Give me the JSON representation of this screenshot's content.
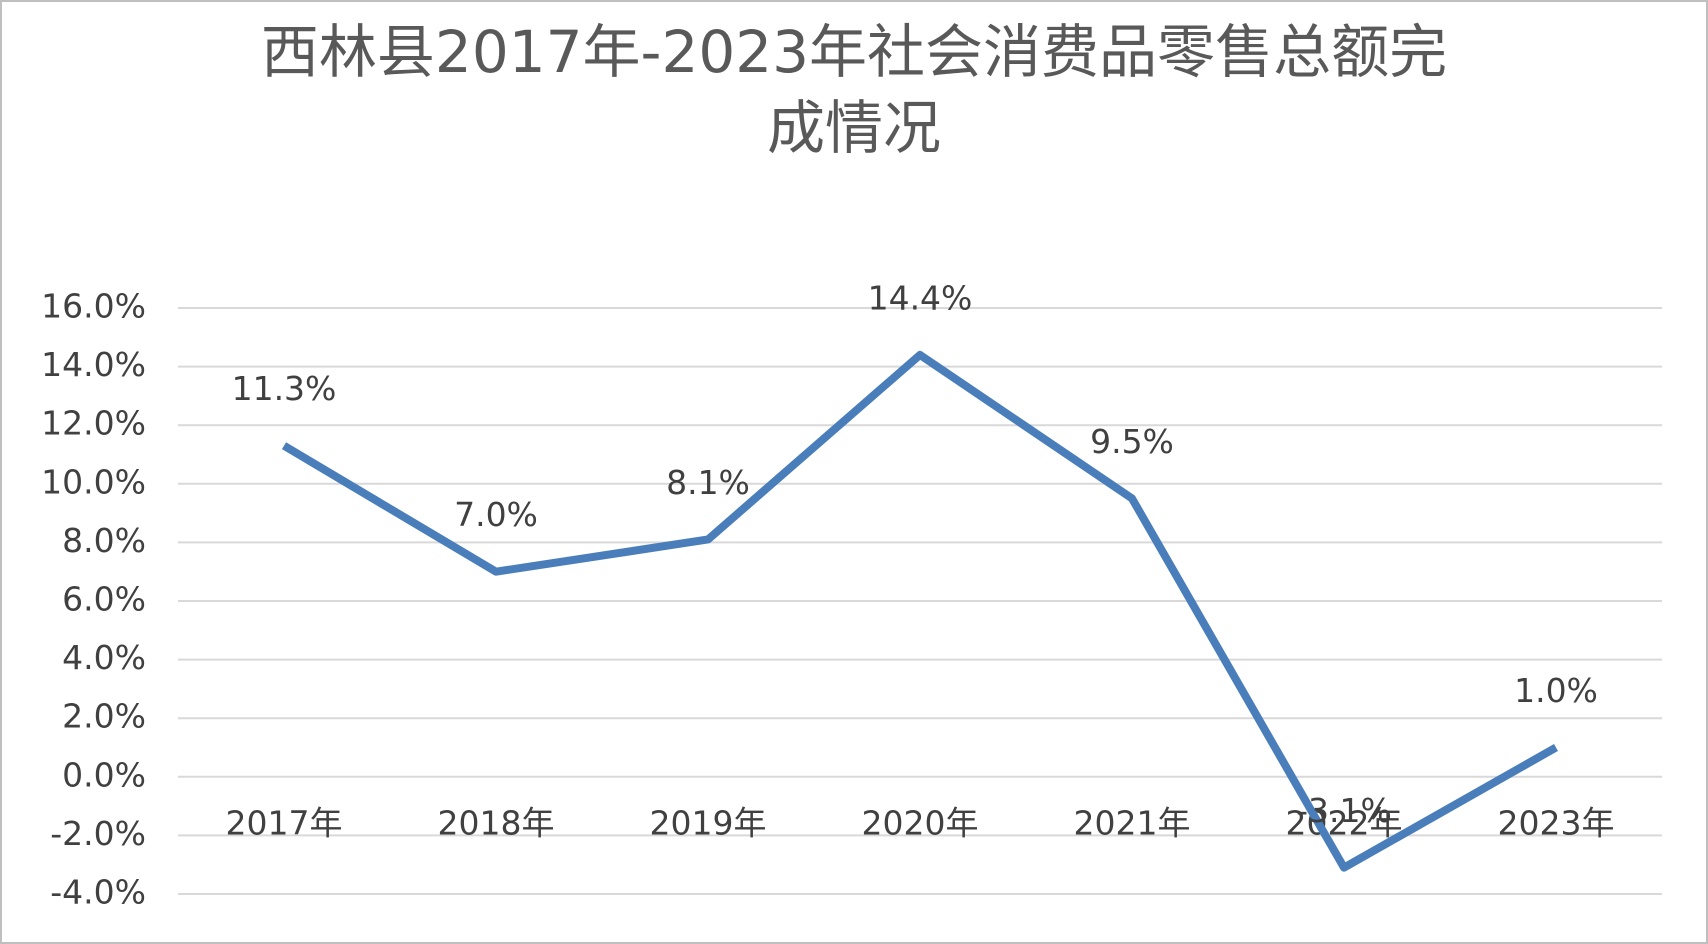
{
  "chart_data": {
    "type": "line",
    "title": "西林县2017年-2023年社会消费品零售总额完成情况",
    "categories": [
      "2017年",
      "2018年",
      "2019年",
      "2020年",
      "2021年",
      "2022年",
      "2023年"
    ],
    "series": [
      {
        "color": "#4a7ebb",
        "values": [
          11.3,
          7.0,
          8.1,
          14.4,
          9.5,
          -3.1,
          1.0
        ],
        "value_labels": [
          "11.3%",
          "7.0%",
          "8.1%",
          "14.4%",
          "9.5%",
          "-3.1%",
          "1.0%"
        ]
      }
    ],
    "ylim": [
      -4,
      16
    ],
    "yticks": [
      {
        "value": -4,
        "label": "-4.0%"
      },
      {
        "value": -2,
        "label": "-2.0%"
      },
      {
        "value": 0,
        "label": "0.0%"
      },
      {
        "value": 2,
        "label": "2.0%"
      },
      {
        "value": 4,
        "label": "4.0%"
      },
      {
        "value": 6,
        "label": "6.0%"
      },
      {
        "value": 8,
        "label": "8.0%"
      },
      {
        "value": 10,
        "label": "10.0%"
      },
      {
        "value": 12,
        "label": "12.0%"
      },
      {
        "value": 14,
        "label": "14.0%"
      },
      {
        "value": 16,
        "label": "16.0%"
      }
    ],
    "grid": true
  }
}
